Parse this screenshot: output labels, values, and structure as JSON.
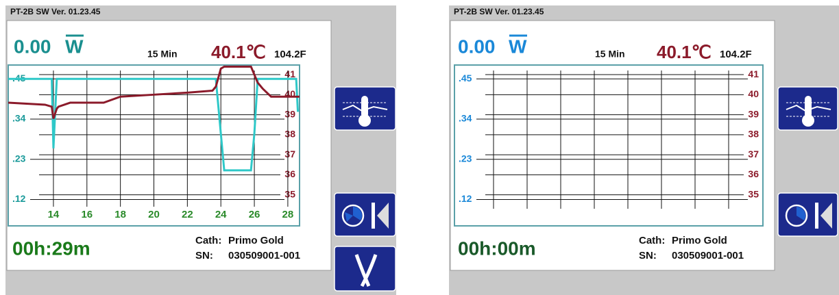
{
  "screens": [
    {
      "header": "PT-2B SW Ver. 01.23.45",
      "power": "0.00",
      "power_unit": "W",
      "interval": "15 Min",
      "temp_c": "40.1℃",
      "temp_f": "104.2F",
      "elapsed": "00h:29m",
      "cath_label": "Cath:",
      "cath_value": "Primo Gold",
      "sn_label": "SN:",
      "sn_value": "030509001-001"
    },
    {
      "header": "PT-2B SW Ver. 01.23.45",
      "power": "0.00",
      "power_unit": "W",
      "interval": "15 Min",
      "temp_c": "40.1℃",
      "temp_f": "104.2F",
      "elapsed": "00h:00m",
      "cath_label": "Cath:",
      "cath_value": "Primo Gold",
      "sn_label": "SN:",
      "sn_value": "030509001-001"
    }
  ],
  "chart_data": [
    {
      "type": "line",
      "x": [
        11.3,
        13.5,
        13.9,
        14.0,
        14.2,
        14.3,
        15,
        17,
        18,
        20,
        22,
        23.5,
        23.7,
        24.0,
        24.2,
        25.8,
        26.0,
        26.2,
        26.5,
        27,
        28.5,
        28.6,
        28.7
      ],
      "series": [
        {
          "color": "#2ec8c8",
          "values": [
            0.45,
            0.45,
            0.45,
            0.26,
            0.45,
            0.45,
            0.45,
            0.45,
            0.45,
            0.45,
            0.45,
            0.45,
            0.45,
            0.3,
            0.2,
            0.2,
            0.3,
            0.45,
            0.45,
            0.45,
            0.45,
            0.36,
            null
          ]
        },
        {
          "color": "#8b1a2a",
          "axis": "y2",
          "values": [
            39.6,
            39.5,
            39.4,
            38.8,
            39.3,
            39.4,
            39.6,
            39.6,
            39.9,
            40.0,
            40.1,
            40.2,
            40.4,
            41.3,
            41.4,
            41.4,
            41.0,
            40.6,
            40.3,
            39.9,
            39.9,
            39.9,
            39.9
          ]
        }
      ],
      "xlim": [
        11.3,
        28.7
      ],
      "xticks": [
        14,
        16,
        18,
        20,
        22,
        24,
        26,
        28
      ],
      "ylim": [
        0.048,
        0.488
      ],
      "yticks": [
        {
          "value": 0.45,
          "label": ".45"
        },
        {
          "value": 0.34,
          "label": ".34"
        },
        {
          "value": 0.23,
          "label": ".23"
        },
        {
          "value": 0.12,
          "label": ".12"
        }
      ],
      "y2lim": [
        33.45,
        41.48
      ],
      "y2ticks": [
        41,
        40,
        39,
        38,
        37,
        36,
        35
      ],
      "grid": true
    },
    {
      "type": "line",
      "ylim": [
        0.048,
        0.488
      ],
      "yticks": [
        {
          "value": 0.45,
          "label": ".45"
        },
        {
          "value": 0.34,
          "label": ".34"
        },
        {
          "value": 0.23,
          "label": ".23"
        },
        {
          "value": 0.12,
          "label": ".12"
        }
      ],
      "y2lim": [
        33.45,
        41.48
      ],
      "y2ticks": [
        41,
        40,
        39,
        38,
        37,
        36,
        35
      ],
      "grid": true
    }
  ]
}
